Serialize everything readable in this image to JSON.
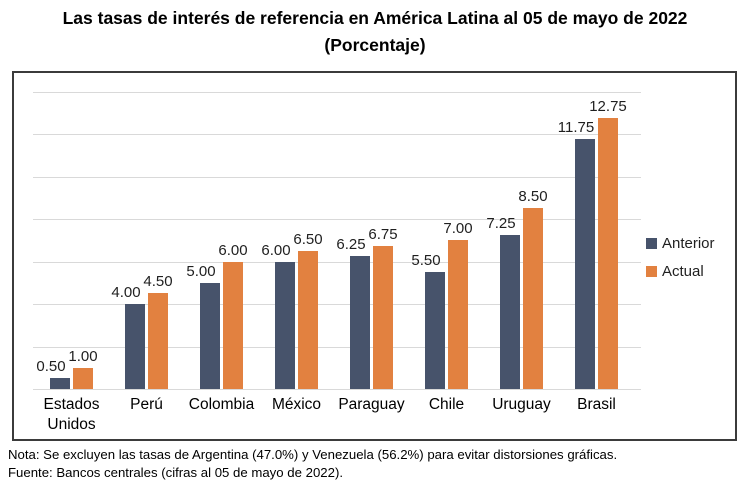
{
  "title": {
    "line1": "Las tasas de interés de referencia en América Latina al 05 de mayo de 2022",
    "line2": "(Porcentaje)"
  },
  "chart_data": {
    "type": "bar",
    "title": "Las tasas de interés de referencia en América Latina al 05 de mayo de 2022 (Porcentaje)",
    "categories": [
      "Estados Unidos",
      "Perú",
      "Colombia",
      "México",
      "Paraguay",
      "Chile",
      "Uruguay",
      "Brasil"
    ],
    "series": [
      {
        "name": "Anterior",
        "color": "#47536b",
        "values": [
          0.5,
          4.0,
          5.0,
          6.0,
          6.25,
          5.5,
          7.25,
          11.75
        ]
      },
      {
        "name": "Actual",
        "color": "#e28140",
        "values": [
          1.0,
          4.5,
          6.0,
          6.5,
          6.75,
          7.0,
          8.5,
          12.75
        ]
      }
    ],
    "xlabel": "",
    "ylabel": "",
    "ylim": [
      0,
      14
    ],
    "gridline_step": 2,
    "grid": true,
    "y_axis_labels_visible": false,
    "data_labels": true,
    "data_label_decimals": 2,
    "legend_position": "right"
  },
  "colors": {
    "anterior": "#47536b",
    "actual": "#e28140",
    "gridline": "#d9d9d9",
    "frame_border": "#3b3b3b",
    "text": "#000000"
  },
  "notes": {
    "note": "Nota: Se excluyen las tasas de Argentina (47.0%) y Venezuela (56.2%) para evitar distorsiones gráficas.",
    "source": "Fuente: Bancos centrales (cifras al 05 de mayo de 2022)."
  }
}
